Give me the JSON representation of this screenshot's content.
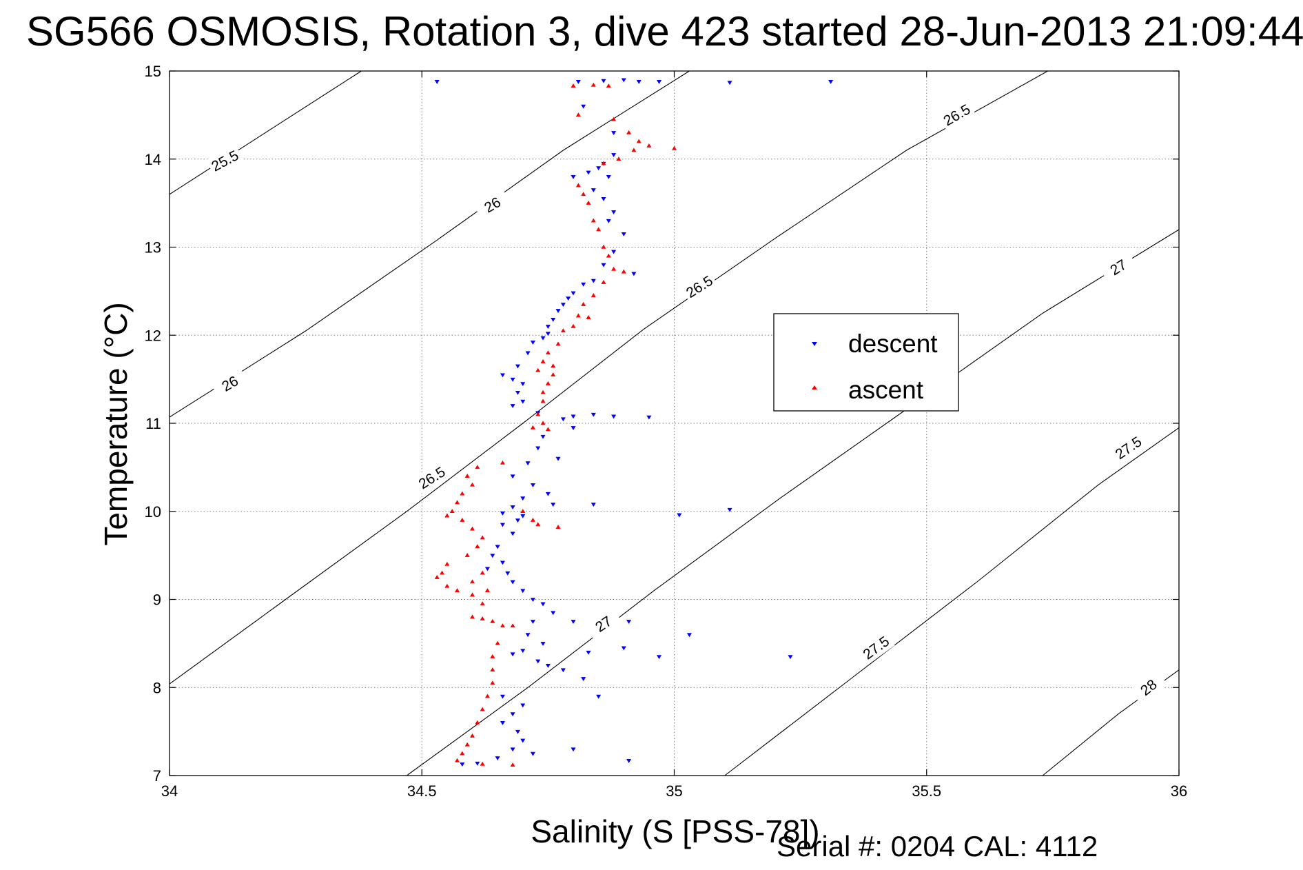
{
  "title": "SG566 OSMOSIS, Rotation 3, dive 423 started 28-Jun-2013 21:09:44",
  "footer": "Serial #: 0204  CAL: 4112",
  "colors": {
    "descent": "#0000ff",
    "ascent": "#ff0000",
    "axis": "#000000",
    "grid": "#7f7f7f"
  },
  "chart_data": {
    "type": "scatter",
    "xlabel": "Salinity (S [PSS-78])",
    "ylabel": "Temperature (°C)",
    "xlim": [
      34,
      36
    ],
    "ylim": [
      7,
      15
    ],
    "xticks": [
      34,
      34.5,
      35,
      35.5,
      36
    ],
    "xtick_labels": [
      "34",
      "34.5",
      "35",
      "35.5",
      "36"
    ],
    "yticks": [
      7,
      8,
      9,
      10,
      11,
      12,
      13,
      14,
      15
    ],
    "ytick_labels": [
      "7",
      "8",
      "9",
      "10",
      "11",
      "12",
      "13",
      "14",
      "15"
    ],
    "grid": true,
    "legend_position": "right",
    "series": [
      {
        "name": "descent",
        "marker": "triangle-down",
        "color": "#0000ff",
        "points": [
          [
            34.53,
            14.88
          ],
          [
            34.81,
            14.88
          ],
          [
            34.86,
            14.89
          ],
          [
            34.9,
            14.9
          ],
          [
            34.93,
            14.88
          ],
          [
            34.97,
            14.88
          ],
          [
            35.11,
            14.87
          ],
          [
            35.31,
            14.88
          ],
          [
            34.82,
            14.6
          ],
          [
            34.88,
            14.3
          ],
          [
            34.88,
            14.05
          ],
          [
            34.86,
            13.95
          ],
          [
            34.85,
            13.9
          ],
          [
            34.83,
            13.85
          ],
          [
            34.8,
            13.8
          ],
          [
            34.87,
            13.8
          ],
          [
            34.84,
            13.65
          ],
          [
            34.86,
            13.55
          ],
          [
            34.88,
            13.4
          ],
          [
            34.87,
            13.3
          ],
          [
            34.9,
            13.15
          ],
          [
            34.88,
            12.95
          ],
          [
            34.86,
            12.8
          ],
          [
            34.92,
            12.7
          ],
          [
            34.84,
            12.62
          ],
          [
            34.82,
            12.58
          ],
          [
            34.8,
            12.48
          ],
          [
            34.79,
            12.42
          ],
          [
            34.78,
            12.35
          ],
          [
            34.77,
            12.28
          ],
          [
            34.76,
            12.18
          ],
          [
            34.75,
            12.1
          ],
          [
            34.75,
            12.02
          ],
          [
            34.74,
            11.97
          ],
          [
            34.72,
            11.92
          ],
          [
            34.71,
            11.8
          ],
          [
            34.69,
            11.65
          ],
          [
            34.66,
            11.55
          ],
          [
            34.68,
            11.5
          ],
          [
            34.7,
            11.45
          ],
          [
            34.69,
            11.35
          ],
          [
            34.7,
            11.25
          ],
          [
            34.68,
            11.2
          ],
          [
            34.73,
            11.12
          ],
          [
            34.78,
            11.05
          ],
          [
            34.8,
            11.08
          ],
          [
            34.84,
            11.1
          ],
          [
            34.88,
            11.08
          ],
          [
            34.95,
            11.07
          ],
          [
            34.8,
            10.95
          ],
          [
            34.74,
            10.85
          ],
          [
            34.73,
            10.72
          ],
          [
            34.77,
            10.6
          ],
          [
            34.71,
            10.55
          ],
          [
            34.68,
            10.4
          ],
          [
            34.72,
            10.3
          ],
          [
            34.75,
            10.2
          ],
          [
            34.7,
            10.15
          ],
          [
            34.68,
            10.05
          ],
          [
            34.66,
            9.98
          ],
          [
            34.7,
            9.95
          ],
          [
            34.76,
            10.08
          ],
          [
            34.84,
            10.08
          ],
          [
            35.11,
            10.02
          ],
          [
            35.01,
            9.96
          ],
          [
            34.69,
            9.9
          ],
          [
            34.66,
            9.85
          ],
          [
            34.68,
            9.75
          ],
          [
            34.65,
            9.6
          ],
          [
            34.64,
            9.5
          ],
          [
            34.66,
            9.42
          ],
          [
            34.63,
            9.35
          ],
          [
            34.67,
            9.3
          ],
          [
            34.68,
            9.2
          ],
          [
            34.7,
            9.1
          ],
          [
            34.72,
            9.0
          ],
          [
            34.74,
            8.95
          ],
          [
            34.76,
            8.85
          ],
          [
            34.72,
            8.75
          ],
          [
            34.71,
            8.6
          ],
          [
            34.74,
            8.5
          ],
          [
            34.7,
            8.42
          ],
          [
            34.68,
            8.38
          ],
          [
            34.73,
            8.3
          ],
          [
            34.75,
            8.25
          ],
          [
            34.78,
            8.2
          ],
          [
            34.83,
            8.4
          ],
          [
            34.9,
            8.45
          ],
          [
            35.03,
            8.6
          ],
          [
            34.97,
            8.35
          ],
          [
            35.23,
            8.35
          ],
          [
            34.66,
            7.9
          ],
          [
            34.7,
            7.8
          ],
          [
            34.68,
            7.7
          ],
          [
            34.66,
            7.6
          ],
          [
            34.69,
            7.5
          ],
          [
            34.7,
            7.4
          ],
          [
            34.68,
            7.3
          ],
          [
            34.65,
            7.2
          ],
          [
            34.72,
            7.25
          ],
          [
            34.8,
            7.3
          ],
          [
            34.91,
            7.17
          ],
          [
            34.61,
            7.14
          ],
          [
            34.58,
            7.13
          ],
          [
            34.85,
            7.9
          ],
          [
            34.82,
            8.1
          ],
          [
            34.8,
            8.75
          ],
          [
            34.91,
            8.75
          ]
        ]
      },
      {
        "name": "ascent",
        "marker": "triangle-up",
        "color": "#ff0000",
        "points": [
          [
            34.8,
            14.83
          ],
          [
            34.84,
            14.84
          ],
          [
            34.87,
            14.83
          ],
          [
            34.81,
            14.5
          ],
          [
            34.88,
            14.45
          ],
          [
            34.91,
            14.3
          ],
          [
            34.93,
            14.2
          ],
          [
            34.95,
            14.15
          ],
          [
            34.92,
            14.1
          ],
          [
            34.89,
            14.0
          ],
          [
            34.86,
            13.95
          ],
          [
            35.0,
            14.12
          ],
          [
            34.81,
            13.7
          ],
          [
            34.82,
            13.6
          ],
          [
            34.83,
            13.5
          ],
          [
            34.84,
            13.3
          ],
          [
            34.85,
            13.2
          ],
          [
            34.86,
            13.0
          ],
          [
            34.87,
            12.9
          ],
          [
            34.88,
            12.75
          ],
          [
            34.9,
            12.72
          ],
          [
            34.86,
            12.6
          ],
          [
            34.84,
            12.45
          ],
          [
            34.82,
            12.35
          ],
          [
            34.81,
            12.22
          ],
          [
            34.83,
            12.2
          ],
          [
            34.8,
            12.1
          ],
          [
            34.78,
            12.05
          ],
          [
            34.77,
            11.9
          ],
          [
            34.75,
            11.8
          ],
          [
            34.74,
            11.7
          ],
          [
            34.76,
            11.65
          ],
          [
            34.73,
            11.6
          ],
          [
            34.76,
            11.55
          ],
          [
            34.75,
            11.45
          ],
          [
            34.74,
            11.35
          ],
          [
            34.74,
            11.25
          ],
          [
            34.73,
            11.1
          ],
          [
            34.74,
            11.0
          ],
          [
            34.75,
            10.93
          ],
          [
            34.72,
            10.95
          ],
          [
            34.66,
            10.55
          ],
          [
            34.61,
            10.5
          ],
          [
            34.59,
            10.4
          ],
          [
            34.6,
            10.3
          ],
          [
            34.58,
            10.2
          ],
          [
            34.57,
            10.1
          ],
          [
            34.56,
            10.0
          ],
          [
            34.55,
            9.95
          ],
          [
            34.58,
            9.9
          ],
          [
            34.6,
            9.8
          ],
          [
            34.62,
            9.7
          ],
          [
            34.61,
            9.6
          ],
          [
            34.59,
            9.5
          ],
          [
            34.55,
            9.4
          ],
          [
            34.54,
            9.3
          ],
          [
            34.53,
            9.25
          ],
          [
            34.55,
            9.15
          ],
          [
            34.57,
            9.1
          ],
          [
            34.6,
            9.05
          ],
          [
            34.63,
            9.1
          ],
          [
            34.6,
            9.2
          ],
          [
            34.62,
            9.3
          ],
          [
            34.62,
            8.95
          ],
          [
            34.6,
            8.8
          ],
          [
            34.62,
            8.78
          ],
          [
            34.64,
            8.75
          ],
          [
            34.66,
            8.7
          ],
          [
            34.68,
            8.7
          ],
          [
            34.65,
            8.5
          ],
          [
            34.64,
            8.35
          ],
          [
            34.64,
            8.2
          ],
          [
            34.64,
            8.05
          ],
          [
            34.63,
            7.9
          ],
          [
            34.62,
            7.75
          ],
          [
            34.61,
            7.6
          ],
          [
            34.6,
            7.45
          ],
          [
            34.59,
            7.35
          ],
          [
            34.58,
            7.25
          ],
          [
            34.57,
            7.17
          ],
          [
            34.62,
            7.13
          ],
          [
            34.68,
            7.12
          ],
          [
            34.7,
            10.0
          ],
          [
            34.72,
            9.9
          ],
          [
            34.73,
            9.85
          ],
          [
            34.77,
            9.82
          ]
        ]
      }
    ],
    "contours": [
      {
        "level": 25.5,
        "points": [
          [
            34.0,
            13.6
          ],
          [
            34.38,
            15.0
          ]
        ],
        "labels": [
          {
            "text": "25.5",
            "at": [
              34.11,
              13.98
            ],
            "angle": -28
          }
        ]
      },
      {
        "level": 26,
        "points": [
          [
            34.0,
            11.07
          ],
          [
            34.27,
            12.05
          ],
          [
            34.53,
            13.08
          ],
          [
            34.78,
            14.1
          ],
          [
            35.03,
            15.0
          ]
        ],
        "labels": [
          {
            "text": "26",
            "at": [
              34.12,
              11.45
            ],
            "angle": -30
          },
          {
            "text": "26",
            "at": [
              34.64,
              13.48
            ],
            "angle": -30
          }
        ]
      },
      {
        "level": 26.5,
        "points": [
          [
            34.0,
            8.04
          ],
          [
            34.23,
            9.0
          ],
          [
            34.47,
            10.0
          ],
          [
            34.7,
            11.0
          ],
          [
            34.94,
            12.07
          ],
          [
            35.2,
            13.1
          ],
          [
            35.46,
            14.1
          ],
          [
            35.74,
            15.0
          ]
        ],
        "labels": [
          {
            "text": "26.5",
            "at": [
              34.52,
              10.38
            ],
            "angle": -32
          },
          {
            "text": "26.5",
            "at": [
              35.05,
              12.55
            ],
            "angle": -32
          },
          {
            "text": "26.5",
            "at": [
              35.56,
              14.5
            ],
            "angle": -30
          }
        ]
      },
      {
        "level": 27,
        "points": [
          [
            34.47,
            7.0
          ],
          [
            34.71,
            8.0
          ],
          [
            34.96,
            9.1
          ],
          [
            35.21,
            10.15
          ],
          [
            35.47,
            11.2
          ],
          [
            35.73,
            12.25
          ],
          [
            36.0,
            13.2
          ]
        ],
        "labels": [
          {
            "text": "27",
            "at": [
              34.86,
              8.72
            ],
            "angle": -34
          },
          {
            "text": "27",
            "at": [
              35.88,
              12.77
            ],
            "angle": -32
          }
        ]
      },
      {
        "level": 27.5,
        "points": [
          [
            35.1,
            7.0
          ],
          [
            35.35,
            8.1
          ],
          [
            35.6,
            9.2
          ],
          [
            35.84,
            10.3
          ],
          [
            36.0,
            10.95
          ]
        ],
        "labels": [
          {
            "text": "27.5",
            "at": [
              35.4,
              8.45
            ],
            "angle": -36
          },
          {
            "text": "27.5",
            "at": [
              35.9,
              10.72
            ],
            "angle": -34
          }
        ]
      },
      {
        "level": 28,
        "points": [
          [
            35.73,
            7.0
          ],
          [
            35.88,
            7.7
          ],
          [
            36.0,
            8.2
          ]
        ],
        "labels": [
          {
            "text": "28",
            "at": [
              35.94,
              8.0
            ],
            "angle": -38
          }
        ]
      }
    ]
  }
}
